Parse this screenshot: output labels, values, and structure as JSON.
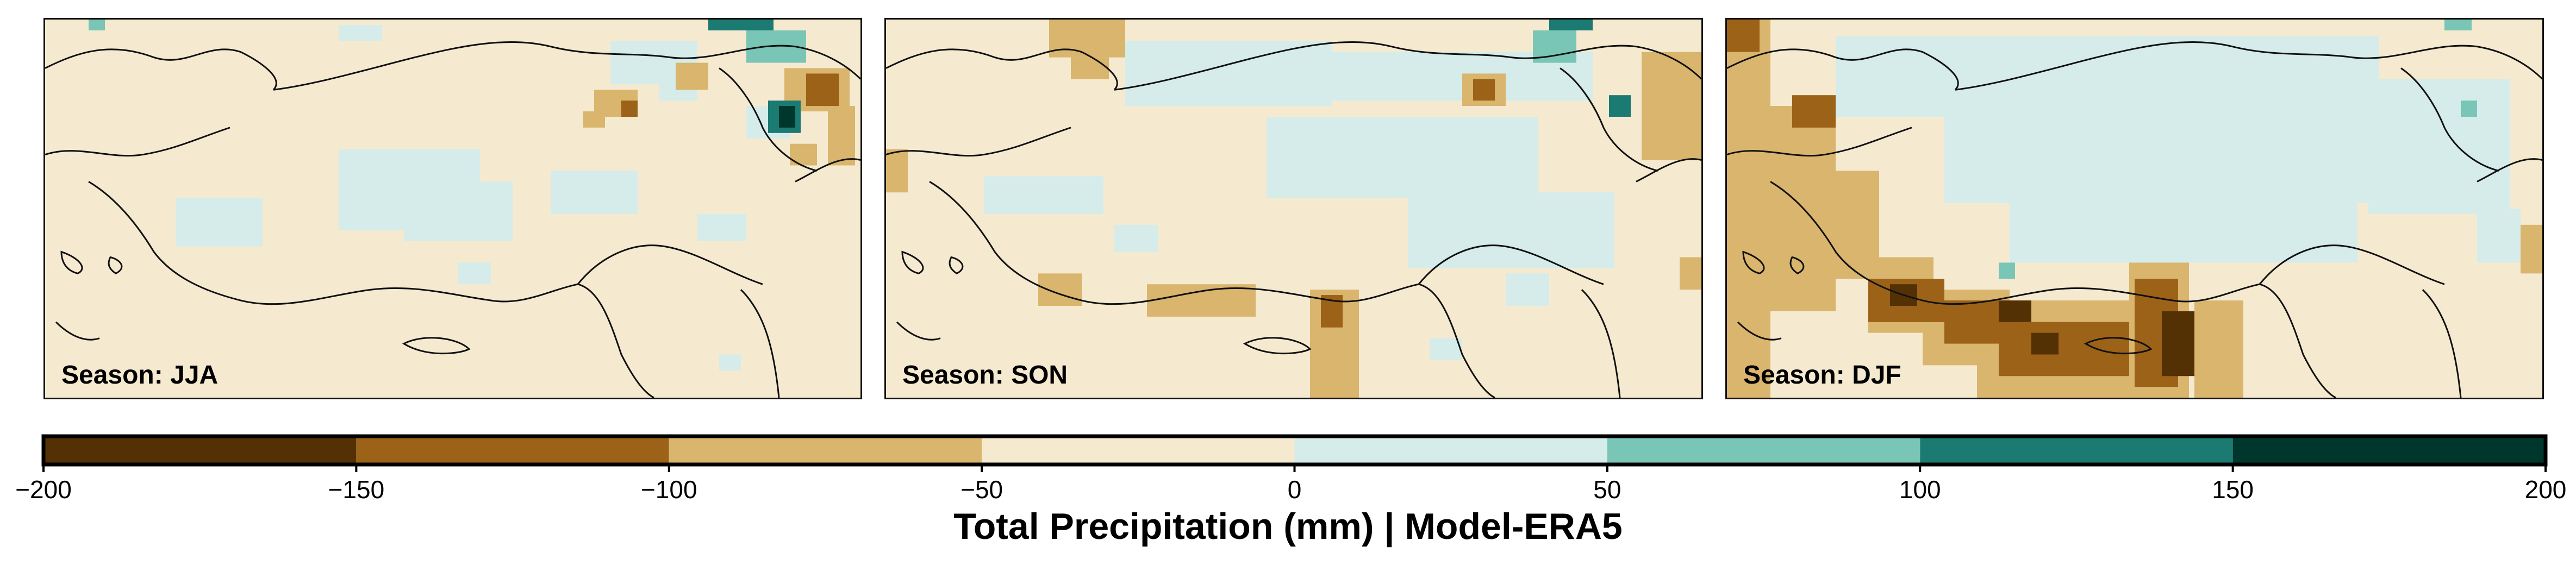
{
  "panels": [
    {
      "label": "Season: JJA"
    },
    {
      "label": "Season: SON"
    },
    {
      "label": "Season: DJF"
    }
  ],
  "legend": {
    "title": "Total Precipitation (mm) | Model-ERA5",
    "ticks": [
      "−200",
      "−150",
      "−100",
      "−50",
      "0",
      "50",
      "100",
      "150",
      "200"
    ],
    "bins": [
      {
        "from": -200,
        "to": -150,
        "color": "#543005"
      },
      {
        "from": -150,
        "to": -100,
        "color": "#9b6218"
      },
      {
        "from": -100,
        "to": -50,
        "color": "#d9b56e"
      },
      {
        "from": -50,
        "to": 0,
        "color": "#f5ead0"
      },
      {
        "from": 0,
        "to": 50,
        "color": "#d5ecea"
      },
      {
        "from": 50,
        "to": 100,
        "color": "#79c5b6"
      },
      {
        "from": 100,
        "to": 150,
        "color": "#1b7a71"
      },
      {
        "from": 150,
        "to": 200,
        "color": "#00372c"
      }
    ]
  },
  "colors": {
    "background": "#f5ead0",
    "coastline": "#111111"
  }
}
